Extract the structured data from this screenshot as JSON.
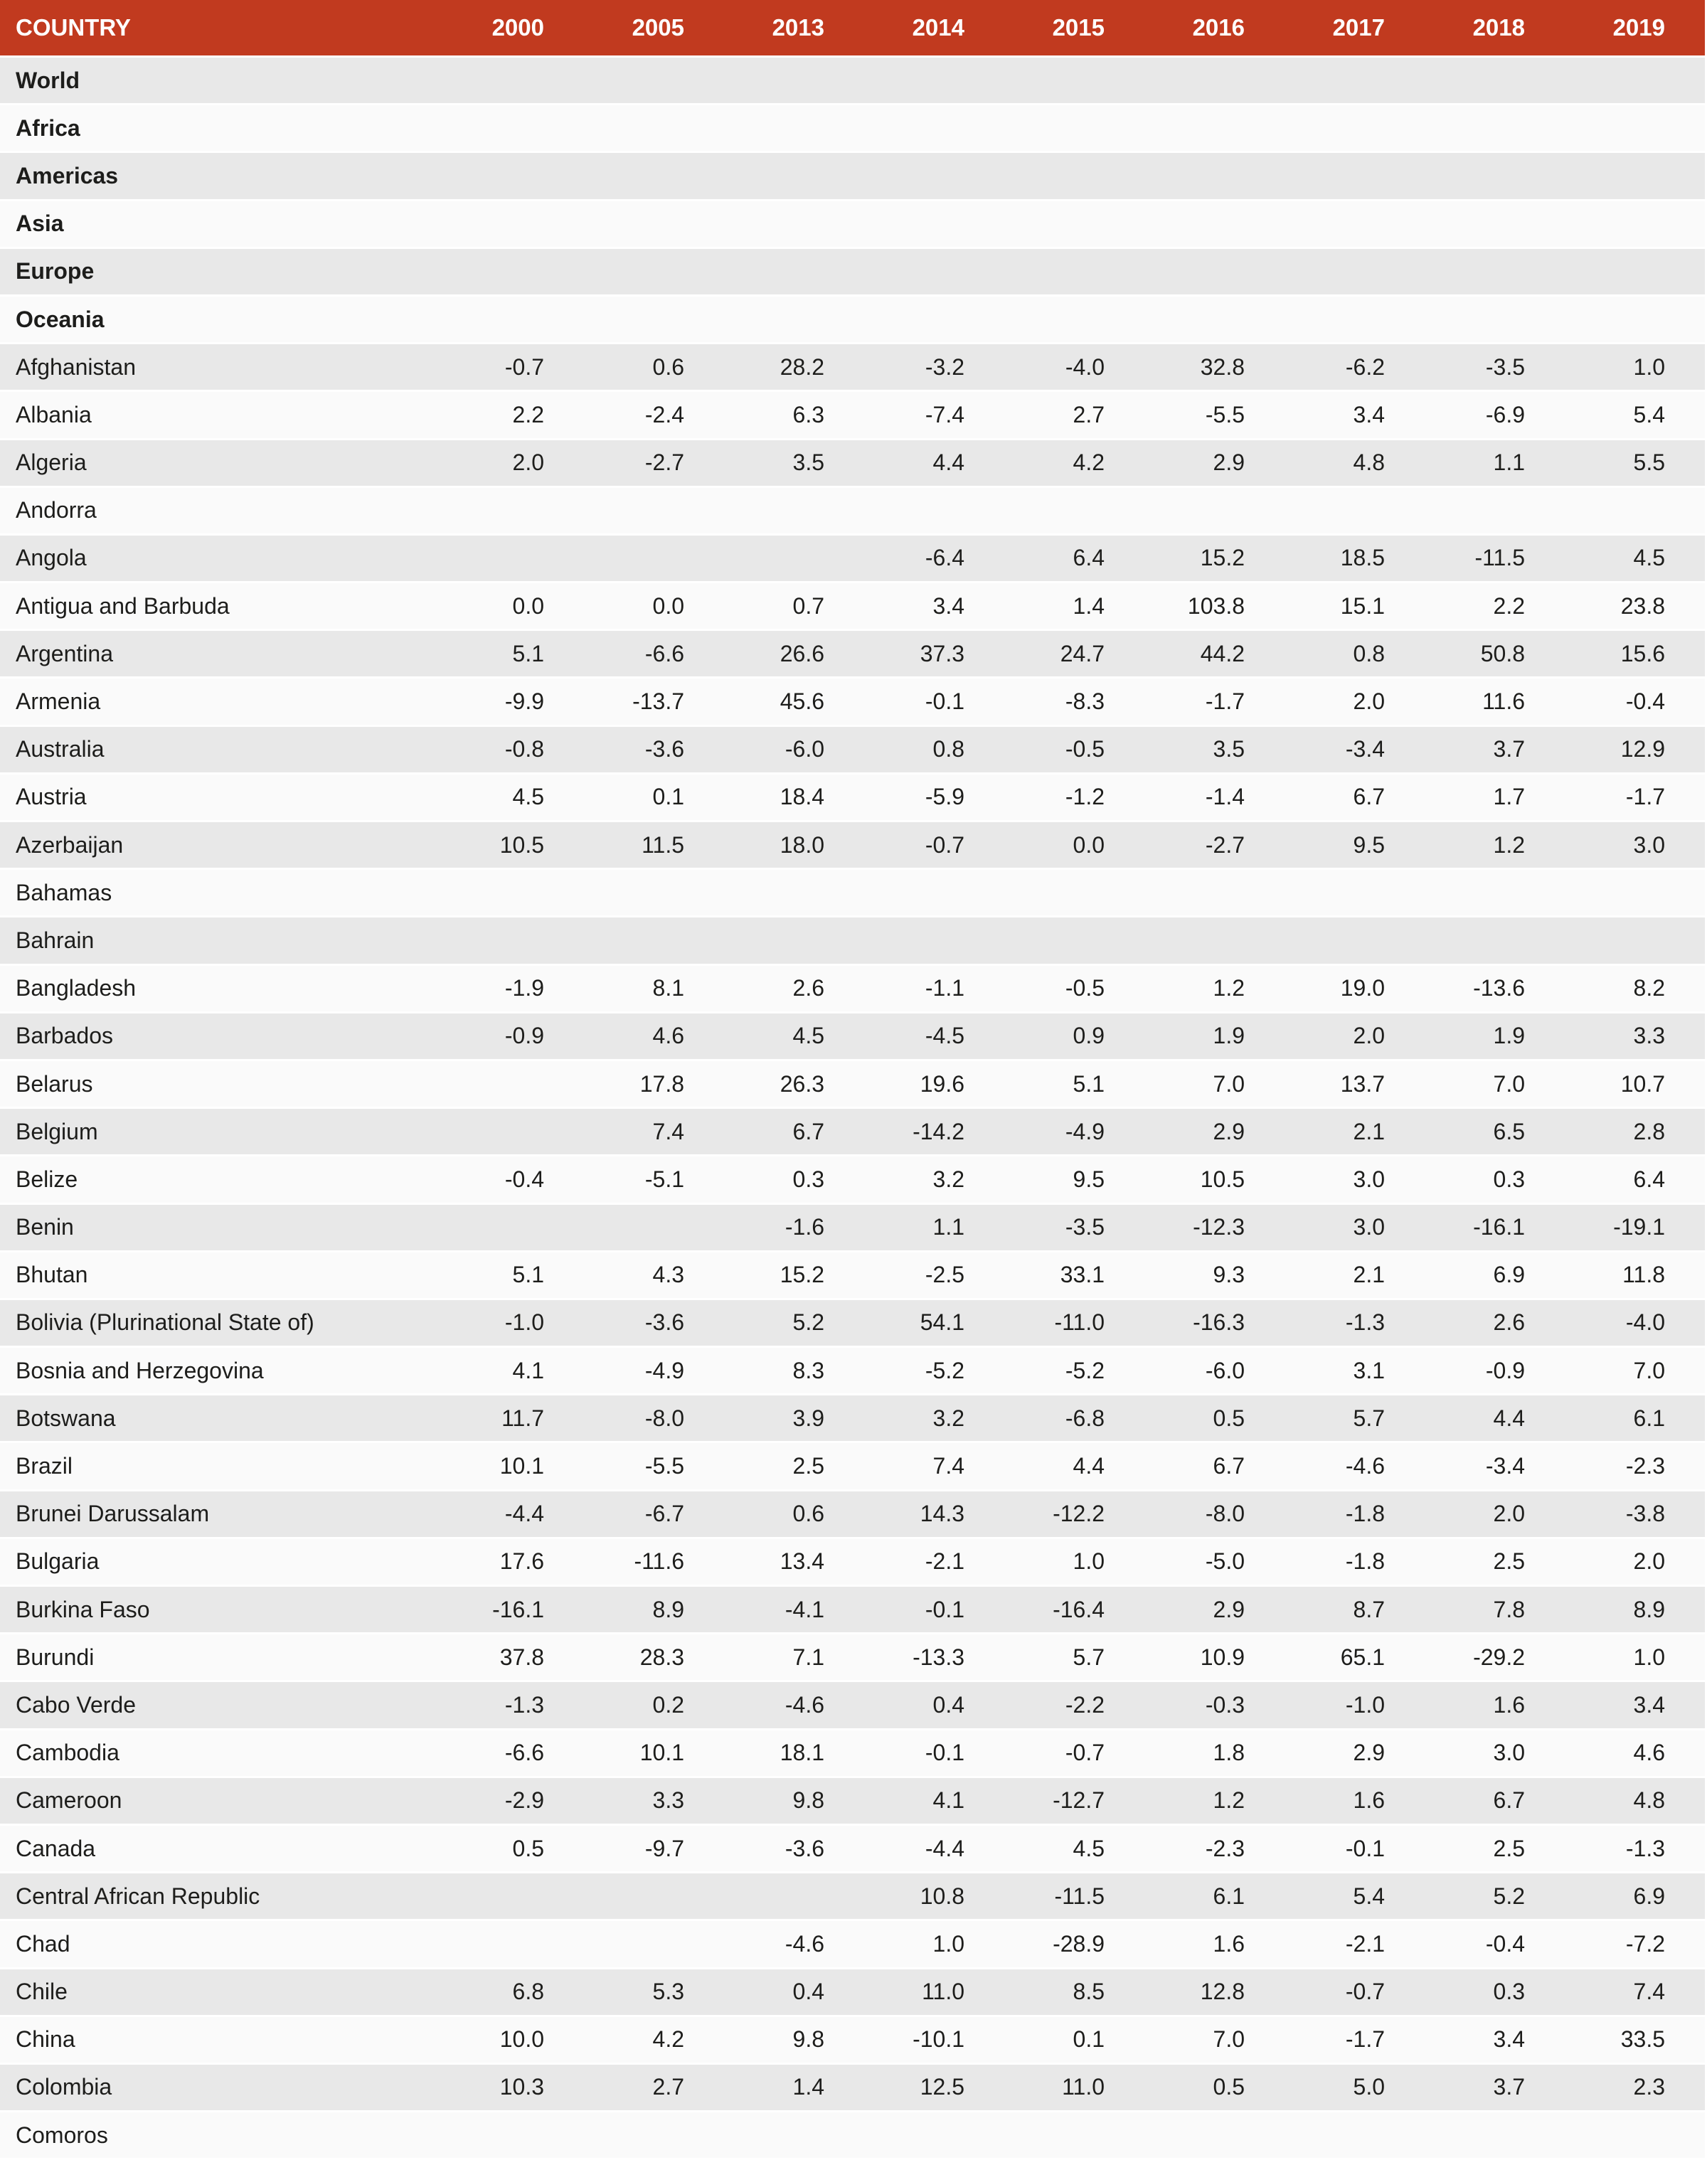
{
  "colors": {
    "header_bg": "#c13a1f",
    "header_text": "#ffffff",
    "row_dark": "#e8e8e8",
    "row_light": "#fafafa",
    "separator": "#ffffff",
    "text": "#1d1d1b"
  },
  "chart_data": {
    "type": "table",
    "columns": [
      "COUNTRY",
      "2000",
      "2005",
      "2013",
      "2014",
      "2015",
      "2016",
      "2017",
      "2018",
      "2019"
    ],
    "rows": [
      {
        "country": "World",
        "is_region": true,
        "values": []
      },
      {
        "country": "Africa",
        "is_region": true,
        "values": []
      },
      {
        "country": "Americas",
        "is_region": true,
        "values": []
      },
      {
        "country": "Asia",
        "is_region": true,
        "values": []
      },
      {
        "country": "Europe",
        "is_region": true,
        "values": []
      },
      {
        "country": "Oceania",
        "is_region": true,
        "values": []
      },
      {
        "country": "Afghanistan",
        "is_region": false,
        "values": [
          -0.7,
          0.6,
          28.2,
          -3.2,
          -4.0,
          32.8,
          -6.2,
          -3.5,
          1.0
        ]
      },
      {
        "country": "Albania",
        "is_region": false,
        "values": [
          2.2,
          -2.4,
          6.3,
          -7.4,
          2.7,
          -5.5,
          3.4,
          -6.9,
          5.4
        ]
      },
      {
        "country": "Algeria",
        "is_region": false,
        "values": [
          2.0,
          -2.7,
          3.5,
          4.4,
          4.2,
          2.9,
          4.8,
          1.1,
          5.5
        ]
      },
      {
        "country": "Andorra",
        "is_region": false,
        "values": []
      },
      {
        "country": "Angola",
        "is_region": false,
        "values": [
          null,
          null,
          null,
          -6.4,
          6.4,
          15.2,
          18.5,
          -11.5,
          4.5
        ]
      },
      {
        "country": "Antigua and Barbuda",
        "is_region": false,
        "values": [
          0.0,
          0.0,
          0.7,
          3.4,
          1.4,
          103.8,
          15.1,
          2.2,
          23.8
        ]
      },
      {
        "country": "Argentina",
        "is_region": false,
        "values": [
          5.1,
          -6.6,
          26.6,
          37.3,
          24.7,
          44.2,
          0.8,
          50.8,
          15.6
        ]
      },
      {
        "country": "Armenia",
        "is_region": false,
        "values": [
          -9.9,
          -13.7,
          45.6,
          -0.1,
          -8.3,
          -1.7,
          2.0,
          11.6,
          -0.4
        ]
      },
      {
        "country": "Australia",
        "is_region": false,
        "values": [
          -0.8,
          -3.6,
          -6.0,
          0.8,
          -0.5,
          3.5,
          -3.4,
          3.7,
          12.9
        ]
      },
      {
        "country": "Austria",
        "is_region": false,
        "values": [
          4.5,
          0.1,
          18.4,
          -5.9,
          -1.2,
          -1.4,
          6.7,
          1.7,
          -1.7
        ]
      },
      {
        "country": "Azerbaijan",
        "is_region": false,
        "values": [
          10.5,
          11.5,
          18.0,
          -0.7,
          0.0,
          -2.7,
          9.5,
          1.2,
          3.0
        ]
      },
      {
        "country": "Bahamas",
        "is_region": false,
        "values": []
      },
      {
        "country": "Bahrain",
        "is_region": false,
        "values": []
      },
      {
        "country": "Bangladesh",
        "is_region": false,
        "values": [
          -1.9,
          8.1,
          2.6,
          -1.1,
          -0.5,
          1.2,
          19.0,
          -13.6,
          8.2
        ]
      },
      {
        "country": "Barbados",
        "is_region": false,
        "values": [
          -0.9,
          4.6,
          4.5,
          -4.5,
          0.9,
          1.9,
          2.0,
          1.9,
          3.3
        ]
      },
      {
        "country": "Belarus",
        "is_region": false,
        "values": [
          null,
          17.8,
          26.3,
          19.6,
          5.1,
          7.0,
          13.7,
          7.0,
          10.7
        ]
      },
      {
        "country": "Belgium",
        "is_region": false,
        "values": [
          null,
          7.4,
          6.7,
          -14.2,
          -4.9,
          2.9,
          2.1,
          6.5,
          2.8
        ]
      },
      {
        "country": "Belize",
        "is_region": false,
        "values": [
          -0.4,
          -5.1,
          0.3,
          3.2,
          9.5,
          10.5,
          3.0,
          0.3,
          6.4
        ]
      },
      {
        "country": "Benin",
        "is_region": false,
        "values": [
          null,
          null,
          -1.6,
          1.1,
          -3.5,
          -12.3,
          3.0,
          -16.1,
          -19.1
        ]
      },
      {
        "country": "Bhutan",
        "is_region": false,
        "values": [
          5.1,
          4.3,
          15.2,
          -2.5,
          33.1,
          9.3,
          2.1,
          6.9,
          11.8
        ]
      },
      {
        "country": "Bolivia (Plurinational State of)",
        "is_region": false,
        "values": [
          -1.0,
          -3.6,
          5.2,
          54.1,
          -11.0,
          -16.3,
          -1.3,
          2.6,
          -4.0
        ]
      },
      {
        "country": "Bosnia and Herzegovina",
        "is_region": false,
        "values": [
          4.1,
          -4.9,
          8.3,
          -5.2,
          -5.2,
          -6.0,
          3.1,
          -0.9,
          7.0
        ]
      },
      {
        "country": "Botswana",
        "is_region": false,
        "values": [
          11.7,
          -8.0,
          3.9,
          3.2,
          -6.8,
          0.5,
          5.7,
          4.4,
          6.1
        ]
      },
      {
        "country": "Brazil",
        "is_region": false,
        "values": [
          10.1,
          -5.5,
          2.5,
          7.4,
          4.4,
          6.7,
          -4.6,
          -3.4,
          -2.3
        ]
      },
      {
        "country": "Brunei Darussalam",
        "is_region": false,
        "values": [
          -4.4,
          -6.7,
          0.6,
          14.3,
          -12.2,
          -8.0,
          -1.8,
          2.0,
          -3.8
        ]
      },
      {
        "country": "Bulgaria",
        "is_region": false,
        "values": [
          17.6,
          -11.6,
          13.4,
          -2.1,
          1.0,
          -5.0,
          -1.8,
          2.5,
          2.0
        ]
      },
      {
        "country": "Burkina Faso",
        "is_region": false,
        "values": [
          -16.1,
          8.9,
          -4.1,
          -0.1,
          -16.4,
          2.9,
          8.7,
          7.8,
          8.9
        ]
      },
      {
        "country": "Burundi",
        "is_region": false,
        "values": [
          37.8,
          28.3,
          7.1,
          -13.3,
          5.7,
          10.9,
          65.1,
          -29.2,
          1.0
        ]
      },
      {
        "country": "Cabo Verde",
        "is_region": false,
        "values": [
          -1.3,
          0.2,
          -4.6,
          0.4,
          -2.2,
          -0.3,
          -1.0,
          1.6,
          3.4
        ]
      },
      {
        "country": "Cambodia",
        "is_region": false,
        "values": [
          -6.6,
          10.1,
          18.1,
          -0.1,
          -0.7,
          1.8,
          2.9,
          3.0,
          4.6
        ]
      },
      {
        "country": "Cameroon",
        "is_region": false,
        "values": [
          -2.9,
          3.3,
          9.8,
          4.1,
          -12.7,
          1.2,
          1.6,
          6.7,
          4.8
        ]
      },
      {
        "country": "Canada",
        "is_region": false,
        "values": [
          0.5,
          -9.7,
          -3.6,
          -4.4,
          4.5,
          -2.3,
          -0.1,
          2.5,
          -1.3
        ]
      },
      {
        "country": "Central African Republic",
        "is_region": false,
        "values": [
          null,
          null,
          null,
          10.8,
          -11.5,
          6.1,
          5.4,
          5.2,
          6.9
        ]
      },
      {
        "country": "Chad",
        "is_region": false,
        "values": [
          null,
          null,
          -4.6,
          1.0,
          -28.9,
          1.6,
          -2.1,
          -0.4,
          -7.2
        ]
      },
      {
        "country": "Chile",
        "is_region": false,
        "values": [
          6.8,
          5.3,
          0.4,
          11.0,
          8.5,
          12.8,
          -0.7,
          0.3,
          7.4
        ]
      },
      {
        "country": "China",
        "is_region": false,
        "values": [
          10.0,
          4.2,
          9.8,
          -10.1,
          0.1,
          7.0,
          -1.7,
          3.4,
          33.5
        ]
      },
      {
        "country": "Colombia",
        "is_region": false,
        "values": [
          10.3,
          2.7,
          1.4,
          12.5,
          11.0,
          0.5,
          5.0,
          3.7,
          2.3
        ]
      },
      {
        "country": "Comoros",
        "is_region": false,
        "values": []
      }
    ]
  }
}
